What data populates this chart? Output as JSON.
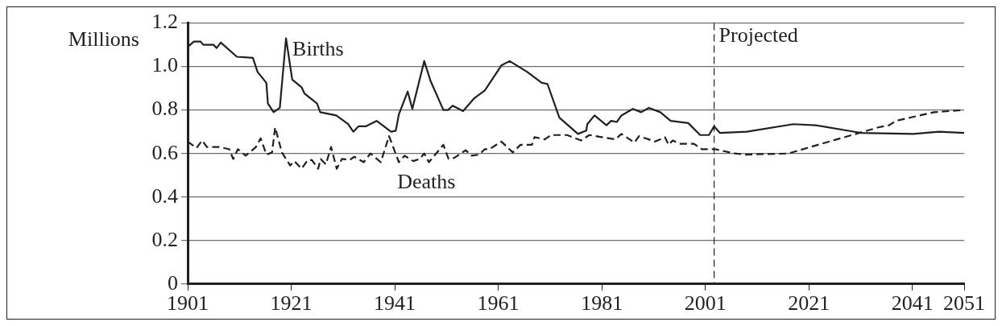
{
  "chart_data": {
    "type": "line",
    "ylabel": "Millions",
    "xlim": [
      1901,
      2051
    ],
    "xticks": [
      1901,
      1921,
      1941,
      1961,
      1981,
      2001,
      2021,
      2041,
      2051
    ],
    "ylim": [
      0,
      1.2
    ],
    "yticks": [
      0,
      0.2,
      0.4,
      0.6,
      0.8,
      {
        "value": 1,
        "label": "1.0"
      },
      1.2
    ],
    "grid": "y",
    "legend": false,
    "marker": "none",
    "series": [
      {
        "name": "Births",
        "color": "#231f20",
        "line_style": "solid",
        "x": [
          1901,
          1902.2,
          1903.5,
          1904,
          1906,
          1906.6,
          1907.4,
          1910.5,
          1913.6,
          1914.5,
          1916.2,
          1916.5,
          1917.6,
          1918.8,
          1920,
          1921.2,
          1923,
          1923.6,
          1926,
          1926.6,
          1929.7,
          1932,
          1933,
          1934,
          1935.4,
          1937.5,
          1940.3,
          1941.2,
          1941.8,
          1943.5,
          1944.4,
          1946.7,
          1947.9,
          1950.4,
          1951.3,
          1952.2,
          1954.2,
          1956.4,
          1958.4,
          1961.6,
          1963.2,
          1966.6,
          1969.4,
          1970.5,
          1972.8,
          1976.4,
          1978,
          1978.2,
          1979.6,
          1981.9,
          1982.8,
          1983.9,
          1984.8,
          1987,
          1988.6,
          1990.1,
          1992.3,
          1994.3,
          1997.7,
          2000,
          2001.7,
          2002.7,
          2003.8,
          2009,
          2018,
          2022.3,
          2031,
          2041.2,
          2046.1,
          2051
        ],
        "values": [
          1.09,
          1.115,
          1.115,
          1.1,
          1.1,
          1.085,
          1.11,
          1.045,
          1.04,
          0.975,
          0.925,
          0.83,
          0.79,
          0.81,
          1.13,
          0.94,
          0.905,
          0.875,
          0.83,
          0.79,
          0.775,
          0.735,
          0.7,
          0.725,
          0.725,
          0.75,
          0.7,
          0.705,
          0.78,
          0.885,
          0.805,
          1.025,
          0.935,
          0.8,
          0.8,
          0.82,
          0.795,
          0.855,
          0.89,
          1.005,
          1.025,
          0.975,
          0.925,
          0.92,
          0.765,
          0.69,
          0.705,
          0.735,
          0.775,
          0.73,
          0.75,
          0.745,
          0.775,
          0.805,
          0.79,
          0.81,
          0.79,
          0.75,
          0.74,
          0.685,
          0.685,
          0.725,
          0.695,
          0.7,
          0.735,
          0.73,
          0.695,
          0.69,
          0.7,
          0.695
        ]
      },
      {
        "name": "Deaths",
        "color": "#231f20",
        "line_style": "dashed",
        "x": [
          1901,
          1902.7,
          1903.8,
          1904.7,
          1907.1,
          1909,
          1909.8,
          1910.7,
          1912.2,
          1914.2,
          1915.1,
          1916.2,
          1917.3,
          1917.9,
          1919.2,
          1920.8,
          1921.6,
          1923,
          1924.2,
          1925,
          1926.2,
          1926.7,
          1927.7,
          1928.7,
          1929.8,
          1930.8,
          1932.3,
          1933.2,
          1935,
          1936.3,
          1938.3,
          1939.9,
          1941.8,
          1942.9,
          1944.6,
          1945.8,
          1946.7,
          1947.6,
          1950.4,
          1951.4,
          1952.5,
          1954.7,
          1955.9,
          1957.3,
          1958.4,
          1959.3,
          1961.6,
          1963.8,
          1965.3,
          1967.5,
          1968,
          1970,
          1971.2,
          1974.3,
          1977,
          1978.6,
          1983.6,
          1984.8,
          1987.3,
          1988.2,
          1991.3,
          1993.2,
          1993.9,
          1994.7,
          1996,
          1998.8,
          2000.3,
          2002.8,
          2006.8,
          2008.7,
          2017,
          2023.5,
          2034.4,
          2036.5,
          2037.8,
          2045.2,
          2051
        ],
        "values": [
          0.655,
          0.625,
          0.66,
          0.63,
          0.63,
          0.62,
          0.575,
          0.62,
          0.59,
          0.63,
          0.67,
          0.595,
          0.605,
          0.72,
          0.605,
          0.545,
          0.565,
          0.53,
          0.57,
          0.57,
          0.53,
          0.575,
          0.55,
          0.63,
          0.53,
          0.575,
          0.57,
          0.585,
          0.56,
          0.6,
          0.56,
          0.68,
          0.56,
          0.59,
          0.565,
          0.575,
          0.6,
          0.56,
          0.64,
          0.575,
          0.58,
          0.615,
          0.59,
          0.595,
          0.62,
          0.62,
          0.655,
          0.605,
          0.64,
          0.64,
          0.675,
          0.665,
          0.685,
          0.685,
          0.66,
          0.685,
          0.665,
          0.69,
          0.65,
          0.68,
          0.655,
          0.675,
          0.64,
          0.66,
          0.645,
          0.645,
          0.62,
          0.62,
          0.6,
          0.595,
          0.6,
          0.645,
          0.72,
          0.73,
          0.75,
          0.79,
          0.8
        ]
      }
    ],
    "ref_lines": [
      {
        "axis": "x",
        "value": 2002.7,
        "label": "Projected",
        "color": "#231f20",
        "line_style": "dashed"
      }
    ]
  }
}
